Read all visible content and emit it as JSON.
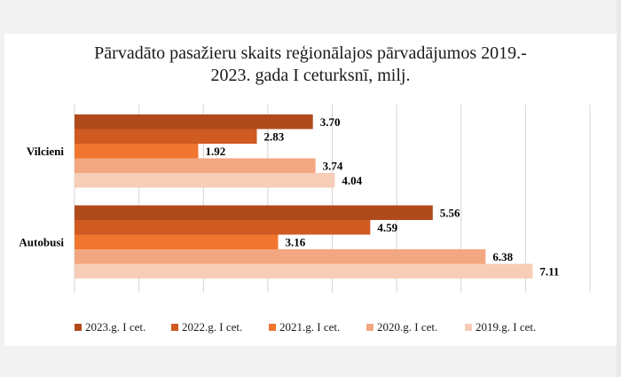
{
  "chart_data": {
    "type": "bar",
    "orientation": "horizontal",
    "title": "Pārvadāto pasažieru skaits reģionālajos pārvadājumos 2019.-\n2023. gada I ceturksnī, milj.",
    "categories": [
      "Vilcieni",
      "Autobusi"
    ],
    "series": [
      {
        "name": "2023.g. I cet.",
        "color": "#b04a1b",
        "values": [
          3.7,
          5.56
        ]
      },
      {
        "name": "2022.g. I cet.",
        "color": "#cf5a22",
        "values": [
          2.83,
          4.59
        ]
      },
      {
        "name": "2021.g. I cet.",
        "color": "#f0752f",
        "values": [
          1.92,
          3.16
        ]
      },
      {
        "name": "2020.g. I cet.",
        "color": "#f2a780",
        "values": [
          3.74,
          6.38
        ]
      },
      {
        "name": "2019.g. I cet.",
        "color": "#f7cdb7",
        "values": [
          4.04,
          7.11
        ]
      }
    ],
    "data_labels": [
      [
        "3.70",
        "5.56"
      ],
      [
        "2.83",
        "4.59"
      ],
      [
        "1.92",
        "3.16"
      ],
      [
        "3.74",
        "6.38"
      ],
      [
        "4.04",
        "7.11"
      ]
    ],
    "xlim": [
      0,
      8
    ],
    "grid": true,
    "legend_position": "bottom"
  }
}
